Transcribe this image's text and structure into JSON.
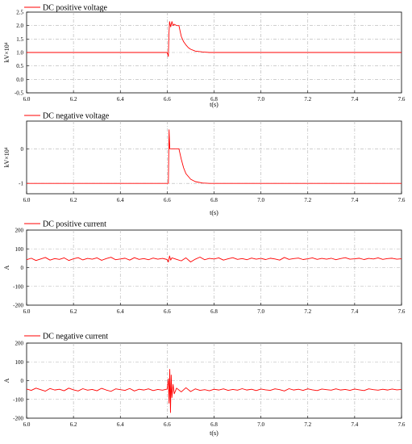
{
  "colors": {
    "series": "#ff0000",
    "axis": "#000000",
    "grid": "#b0b0b0",
    "background": "#ffffff"
  },
  "chart_data": [
    {
      "type": "line",
      "title": "",
      "xlabel": "t(s)",
      "ylabel": "kV×10⁴",
      "xlim": [
        6.0,
        7.6
      ],
      "ylim": [
        -0.5,
        2.5
      ],
      "x_ticks": [
        "6.0",
        "6.2",
        "6.4",
        "6.6",
        "6.8",
        "7.0",
        "7.2",
        "7.4",
        "7.6"
      ],
      "y_ticks": [
        "-0.5",
        "0.0",
        "0.5",
        "1.0",
        "1.5",
        "2.0",
        "2.5"
      ],
      "grid": true,
      "legend_position": "top-left",
      "series": [
        {
          "name": "DC positive voltage",
          "x": [
            6.0,
            6.6,
            6.605,
            6.607,
            6.61,
            6.615,
            6.62,
            6.625,
            6.63,
            6.64,
            6.65,
            6.66,
            6.67,
            6.68,
            6.69,
            6.7,
            6.72,
            6.75,
            6.78,
            7.6
          ],
          "y": [
            1.0,
            1.0,
            0.85,
            1.6,
            2.15,
            1.95,
            2.15,
            2.0,
            2.05,
            2.0,
            2.0,
            1.6,
            1.4,
            1.28,
            1.18,
            1.12,
            1.05,
            1.02,
            1.0,
            1.0
          ]
        }
      ]
    },
    {
      "type": "line",
      "title": "",
      "xlabel": "t(s)",
      "ylabel": "kV×10⁴",
      "xlim": [
        6.0,
        7.6
      ],
      "ylim": [
        -1.3,
        0.8
      ],
      "x_ticks": [
        "6.0",
        "6.2",
        "6.4",
        "6.6",
        "6.8",
        "7.0",
        "7.2",
        "7.4",
        "7.6"
      ],
      "y_ticks": [
        "-1",
        "0"
      ],
      "grid": true,
      "legend_position": "top-left",
      "series": [
        {
          "name": "DC negative voltage",
          "x": [
            6.0,
            6.605,
            6.608,
            6.611,
            6.62,
            6.64,
            6.65,
            6.66,
            6.67,
            6.68,
            6.7,
            6.72,
            6.75,
            6.78,
            7.6
          ],
          "y": [
            -1.0,
            -1.0,
            0.55,
            0.0,
            0.0,
            0.0,
            0.0,
            -0.3,
            -0.55,
            -0.72,
            -0.88,
            -0.95,
            -0.99,
            -1.0,
            -1.0
          ]
        }
      ]
    },
    {
      "type": "line",
      "title": "",
      "xlabel": "",
      "ylabel": "A",
      "xlim": [
        6.0,
        7.6
      ],
      "ylim": [
        -200,
        200
      ],
      "x_ticks": [
        "6.0",
        "6.2",
        "6.4",
        "6.6",
        "6.8",
        "7.0",
        "7.2",
        "7.4",
        "7.6"
      ],
      "y_ticks": [
        "-200",
        "-100",
        "0",
        "100",
        "200"
      ],
      "grid": true,
      "legend_position": "top-left",
      "series": [
        {
          "name": "DC positive current",
          "x": [
            6.0,
            6.02,
            6.04,
            6.06,
            6.08,
            6.1,
            6.12,
            6.14,
            6.16,
            6.18,
            6.2,
            6.22,
            6.24,
            6.26,
            6.28,
            6.3,
            6.32,
            6.34,
            6.36,
            6.38,
            6.4,
            6.42,
            6.44,
            6.46,
            6.48,
            6.5,
            6.52,
            6.54,
            6.56,
            6.58,
            6.6,
            6.605,
            6.61,
            6.615,
            6.62,
            6.63,
            6.64,
            6.66,
            6.68,
            6.7,
            6.72,
            6.74,
            6.76,
            6.78,
            6.8,
            6.82,
            6.84,
            6.86,
            6.88,
            6.9,
            6.92,
            6.94,
            6.96,
            6.98,
            7.0,
            7.02,
            7.04,
            7.06,
            7.08,
            7.1,
            7.12,
            7.14,
            7.16,
            7.18,
            7.2,
            7.22,
            7.24,
            7.26,
            7.28,
            7.3,
            7.32,
            7.34,
            7.36,
            7.38,
            7.4,
            7.42,
            7.44,
            7.46,
            7.48,
            7.5,
            7.52,
            7.54,
            7.56,
            7.58,
            7.6
          ],
          "y": [
            42,
            50,
            38,
            46,
            54,
            40,
            48,
            44,
            52,
            38,
            47,
            53,
            41,
            49,
            45,
            52,
            39,
            48,
            55,
            42,
            46,
            50,
            40,
            53,
            44,
            48,
            42,
            51,
            45,
            49,
            43,
            30,
            62,
            40,
            52,
            48,
            44,
            36,
            52,
            30,
            45,
            56,
            42,
            49,
            46,
            52,
            40,
            47,
            53,
            44,
            48,
            42,
            51,
            45,
            49,
            43,
            50,
            46,
            40,
            54,
            44,
            48,
            51,
            43,
            47,
            52,
            44,
            49,
            45,
            50,
            42,
            48,
            53,
            45,
            47,
            50,
            43,
            49,
            46,
            52,
            44,
            48,
            50,
            45,
            47
          ]
        }
      ]
    },
    {
      "type": "line",
      "title": "",
      "xlabel": "t(s)",
      "ylabel": "A",
      "xlim": [
        6.0,
        7.6
      ],
      "ylim": [
        -200,
        200
      ],
      "x_ticks": [
        "6.0",
        "6.2",
        "6.4",
        "6.6",
        "6.8",
        "7.0",
        "7.2",
        "7.4",
        "7.6"
      ],
      "y_ticks": [
        "-200",
        "-100",
        "0",
        "100",
        "200"
      ],
      "grid": true,
      "legend_position": "top-left",
      "series": [
        {
          "name": "DC negative current",
          "x": [
            6.0,
            6.02,
            6.04,
            6.06,
            6.08,
            6.1,
            6.12,
            6.14,
            6.16,
            6.18,
            6.2,
            6.22,
            6.24,
            6.26,
            6.28,
            6.3,
            6.32,
            6.34,
            6.36,
            6.38,
            6.4,
            6.42,
            6.44,
            6.46,
            6.48,
            6.5,
            6.52,
            6.54,
            6.56,
            6.58,
            6.6,
            6.605,
            6.608,
            6.611,
            6.614,
            6.617,
            6.62,
            6.625,
            6.63,
            6.64,
            6.66,
            6.68,
            6.7,
            6.72,
            6.74,
            6.76,
            6.78,
            6.8,
            6.82,
            6.84,
            6.86,
            6.88,
            6.9,
            6.92,
            6.94,
            6.96,
            6.98,
            7.0,
            7.02,
            7.04,
            7.06,
            7.08,
            7.1,
            7.12,
            7.14,
            7.16,
            7.18,
            7.2,
            7.22,
            7.24,
            7.26,
            7.28,
            7.3,
            7.32,
            7.34,
            7.36,
            7.38,
            7.4,
            7.42,
            7.44,
            7.46,
            7.48,
            7.5,
            7.52,
            7.54,
            7.56,
            7.58,
            7.6
          ],
          "y": [
            -45,
            -52,
            -40,
            -48,
            -56,
            -42,
            -50,
            -46,
            -54,
            -40,
            -49,
            -55,
            -43,
            -51,
            -47,
            -54,
            -41,
            -50,
            -57,
            -44,
            -48,
            -52,
            -42,
            -55,
            -46,
            -50,
            -44,
            -53,
            -47,
            -51,
            -45,
            10,
            -120,
            60,
            -170,
            30,
            -90,
            -20,
            -70,
            -40,
            -60,
            -38,
            -58,
            -44,
            -52,
            -48,
            -54,
            -46,
            -50,
            -44,
            -52,
            -47,
            -51,
            -43,
            -50,
            -46,
            -53,
            -45,
            -49,
            -52,
            -44,
            -48,
            -55,
            -43,
            -50,
            -46,
            -52,
            -44,
            -49,
            -53,
            -45,
            -48,
            -51,
            -44,
            -50,
            -47,
            -52,
            -45,
            -49,
            -53,
            -44,
            -48,
            -51,
            -46,
            -50,
            -45,
            -49,
            -47
          ]
        }
      ]
    }
  ]
}
